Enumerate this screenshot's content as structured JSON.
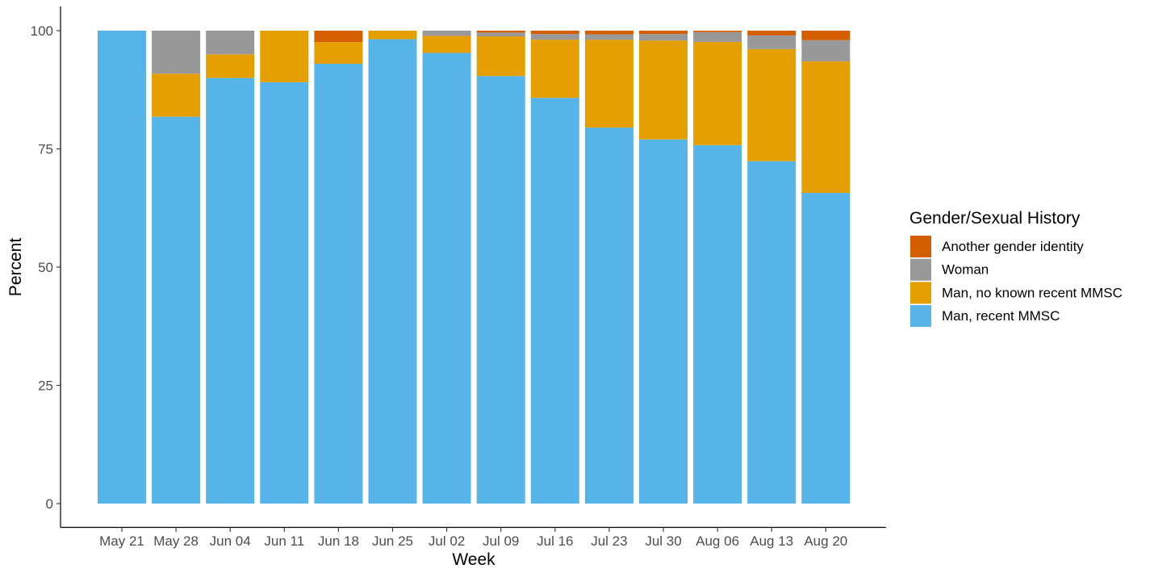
{
  "chart_data": {
    "type": "bar",
    "stacked": true,
    "xlabel": "Week",
    "ylabel": "Percent",
    "ylim": [
      0,
      100
    ],
    "yticks": [
      0,
      25,
      50,
      75,
      100
    ],
    "grid": false,
    "legend_position": "right",
    "legend_title": "Gender/Sexual History",
    "categories": [
      "May 21",
      "May 28",
      "Jun 04",
      "Jun 11",
      "Jun 18",
      "Jun 25",
      "Jul 02",
      "Jul 09",
      "Jul 16",
      "Jul 23",
      "Jul 30",
      "Aug 06",
      "Aug 13",
      "Aug 20"
    ],
    "series": [
      {
        "name": "Man, recent MMSC",
        "color": "#56B4E9",
        "values": [
          100,
          81.8,
          90,
          89.1,
          93,
          98.2,
          95.3,
          90.4,
          85.8,
          79.5,
          77,
          75.8,
          72.4,
          65.7
        ]
      },
      {
        "name": "Man, no known recent MMSC",
        "color": "#E69F00",
        "values": [
          0,
          9.1,
          5,
          10.9,
          4.6,
          1.8,
          3.6,
          8.4,
          12.3,
          18.6,
          20.9,
          21.8,
          23.7,
          27.8
        ]
      },
      {
        "name": "Woman",
        "color": "#999999",
        "values": [
          0,
          9.1,
          5,
          0,
          0,
          0,
          1.1,
          0.8,
          1.2,
          1.1,
          1.4,
          2.1,
          2.9,
          4.5
        ]
      },
      {
        "name": "Another gender identity",
        "color": "#D55E00",
        "values": [
          0,
          0,
          0,
          0,
          2.4,
          0,
          0,
          0.4,
          0.7,
          0.8,
          0.7,
          0.3,
          1,
          2
        ]
      }
    ],
    "legend_order": [
      "Another gender identity",
      "Woman",
      "Man, no known recent MMSC",
      "Man, recent MMSC"
    ]
  }
}
